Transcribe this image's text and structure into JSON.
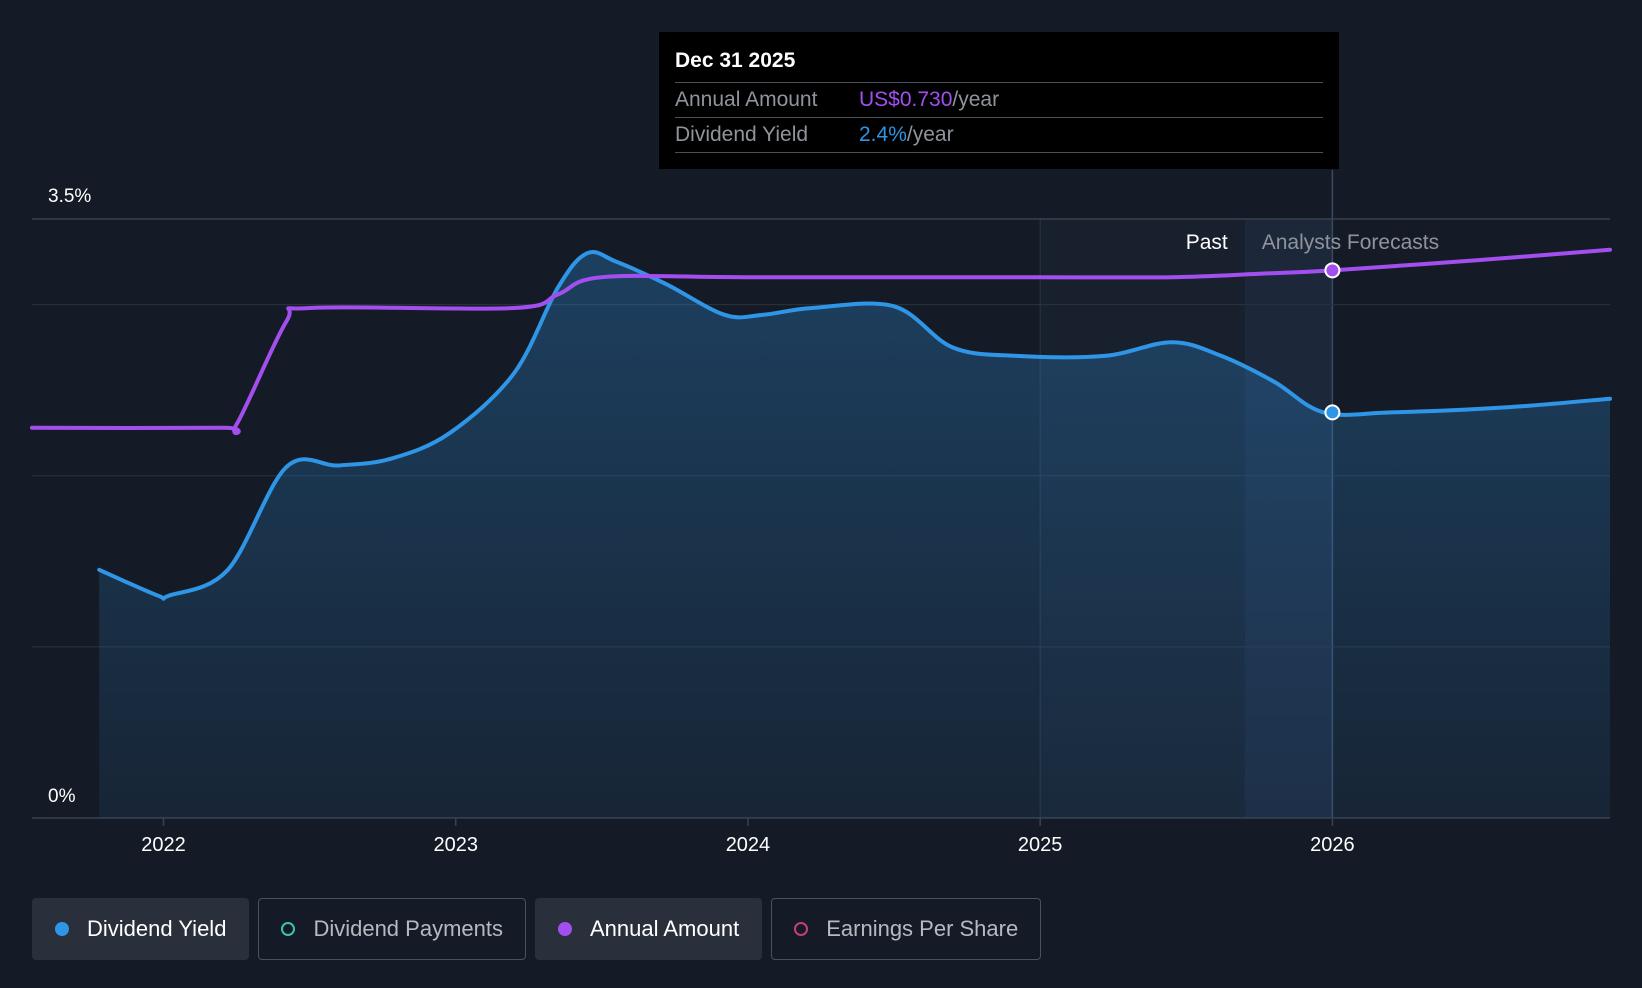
{
  "chart_data": {
    "type": "line",
    "y_axis": {
      "min": 0,
      "max": 3.5,
      "labels": [
        "3.5%",
        "0%"
      ],
      "gridlines": [
        3.5,
        3.0,
        2.0,
        1.0,
        0
      ]
    },
    "x_axis": {
      "min": 2021.55,
      "max": 2026.95,
      "ticks": [
        2022,
        2023,
        2024,
        2025,
        2026
      ],
      "tick_labels": [
        "2022",
        "2023",
        "2024",
        "2025",
        "2026"
      ]
    },
    "sections": {
      "past_label": "Past",
      "forecast_label": "Analysts Forecasts",
      "past_start": 2025.0,
      "past_end": 2025.7,
      "forecast_boundary": 2026.0
    },
    "series": [
      {
        "name": "Dividend Yield",
        "color": "#2f95e6",
        "filled": true,
        "points": [
          [
            2021.78,
            1.45
          ],
          [
            2021.98,
            1.3
          ],
          [
            2022.02,
            1.3
          ],
          [
            2022.22,
            1.45
          ],
          [
            2022.42,
            2.05
          ],
          [
            2022.6,
            2.06
          ],
          [
            2022.78,
            2.1
          ],
          [
            2022.98,
            2.25
          ],
          [
            2023.2,
            2.6
          ],
          [
            2023.35,
            3.1
          ],
          [
            2023.45,
            3.3
          ],
          [
            2023.55,
            3.25
          ],
          [
            2023.72,
            3.12
          ],
          [
            2023.92,
            2.94
          ],
          [
            2024.05,
            2.94
          ],
          [
            2024.22,
            2.98
          ],
          [
            2024.5,
            2.99
          ],
          [
            2024.7,
            2.75
          ],
          [
            2024.92,
            2.7
          ],
          [
            2025.22,
            2.7
          ],
          [
            2025.45,
            2.78
          ],
          [
            2025.62,
            2.7
          ],
          [
            2025.8,
            2.55
          ],
          [
            2025.97,
            2.37
          ],
          [
            2026.2,
            2.37
          ],
          [
            2026.6,
            2.4
          ],
          [
            2026.95,
            2.45
          ]
        ]
      },
      {
        "name": "Annual Amount",
        "color": "#a34ff0",
        "filled": false,
        "points": [
          [
            2021.55,
            2.28
          ],
          [
            2022.2,
            2.28
          ],
          [
            2022.25,
            2.3
          ],
          [
            2022.42,
            2.9
          ],
          [
            2022.5,
            2.98
          ],
          [
            2023.2,
            2.98
          ],
          [
            2023.35,
            3.06
          ],
          [
            2023.5,
            3.16
          ],
          [
            2024.0,
            3.16
          ],
          [
            2025.0,
            3.16
          ],
          [
            2025.45,
            3.16
          ],
          [
            2025.75,
            3.18
          ],
          [
            2026.0,
            3.2
          ],
          [
            2026.5,
            3.26
          ],
          [
            2026.95,
            3.32
          ]
        ]
      }
    ],
    "highlight": {
      "x": 2026.0,
      "yield_value": 2.37,
      "annual_value": 3.2
    }
  },
  "tooltip": {
    "date": "Dec 31 2025",
    "rows": [
      {
        "label": "Annual Amount",
        "value": "US$0.730",
        "unit": "/year"
      },
      {
        "label": "Dividend Yield",
        "value": "2.4%",
        "unit": "/year"
      }
    ]
  },
  "legend": [
    {
      "label": "Dividend Yield",
      "color": "#2f95e6",
      "active": true,
      "filled": true
    },
    {
      "label": "Dividend Payments",
      "color": "#3fbfb0",
      "active": false,
      "filled": false
    },
    {
      "label": "Annual Amount",
      "color": "#a34ff0",
      "active": true,
      "filled": true
    },
    {
      "label": "Earnings Per Share",
      "color": "#c43f76",
      "active": false,
      "filled": false
    }
  ],
  "colors": {
    "background": "#151b26",
    "gridline": "#2b323d",
    "axis_text": "#ffffff",
    "forecast_text": "#8f949c"
  }
}
